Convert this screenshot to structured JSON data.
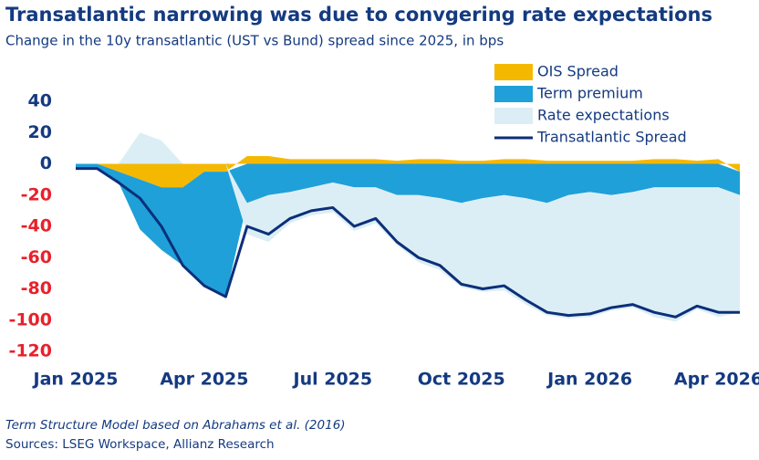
{
  "chart_data": {
    "type": "stacked-area-line",
    "title": "Transatlantic narrowing was due to convgering rate expectations",
    "subtitle": "Change in the 10y transatlantic (UST vs Bund) spread since 2025, in bps",
    "note": "Term Structure Model based on Abrahams et al. (2016)",
    "source": "Sources: LSEG Workspace, Allianz Research",
    "x": [
      0,
      0.5,
      1,
      1.5,
      2,
      2.5,
      3,
      3.5,
      4,
      4.5,
      5,
      5.5,
      6,
      6.5,
      7,
      7.5,
      8,
      8.5,
      9,
      9.5,
      10,
      10.5,
      11,
      11.5,
      12,
      12.5,
      13,
      13.5,
      14,
      14.5,
      15,
      15.5
    ],
    "xlim": [
      0,
      15.5
    ],
    "xticks": [
      {
        "value": 0,
        "label": "Jan 2025"
      },
      {
        "value": 3,
        "label": "Apr 2025"
      },
      {
        "value": 6,
        "label": "Jul 2025"
      },
      {
        "value": 9,
        "label": "Oct 2025"
      },
      {
        "value": 12,
        "label": "Jan 2026"
      },
      {
        "value": 15,
        "label": "Apr 2026"
      }
    ],
    "ylim": [
      -120,
      40
    ],
    "yticks": [
      -120,
      -100,
      -80,
      -60,
      -40,
      -20,
      0,
      20,
      40
    ],
    "series": [
      {
        "name": "OIS Spread",
        "kind": "area",
        "color": "#f5b800",
        "values": [
          0,
          0,
          -5,
          -10,
          -15,
          -15,
          -5,
          -5,
          5,
          5,
          3,
          3,
          3,
          3,
          3,
          2,
          3,
          3,
          2,
          2,
          3,
          3,
          2,
          2,
          2,
          2,
          2,
          3,
          3,
          2,
          3,
          -5
        ]
      },
      {
        "name": "Term premium",
        "kind": "area",
        "color": "#1fa0d8",
        "values": [
          -3,
          -3,
          -7,
          -32,
          -40,
          -50,
          -73,
          -80,
          -25,
          -20,
          -18,
          -15,
          -12,
          -15,
          -15,
          -20,
          -20,
          -22,
          -25,
          -22,
          -20,
          -22,
          -25,
          -20,
          -18,
          -20,
          -18,
          -15,
          -15,
          -15,
          -15,
          -15
        ]
      },
      {
        "name": "Rate expectations",
        "kind": "area",
        "color": "#dceef5",
        "values": [
          0,
          0,
          0,
          20,
          15,
          0,
          0,
          0,
          -20,
          -30,
          -20,
          -18,
          -19,
          -28,
          -23,
          -32,
          -43,
          -46,
          -54,
          -60,
          -61,
          -68,
          -72,
          -79,
          -80,
          -74,
          -74,
          -83,
          -86,
          -78,
          -83,
          -75
        ]
      },
      {
        "name": "Transatlantic Spread",
        "kind": "line",
        "color": "#0c2f7a",
        "values": [
          -3,
          -3,
          -12,
          -22,
          -40,
          -65,
          -78,
          -85,
          -40,
          -45,
          -35,
          -30,
          -28,
          -40,
          -35,
          -50,
          -60,
          -65,
          -77,
          -80,
          -78,
          -87,
          -95,
          -97,
          -96,
          -92,
          -90,
          -95,
          -98,
          -91,
          -95,
          -95
        ]
      }
    ]
  }
}
